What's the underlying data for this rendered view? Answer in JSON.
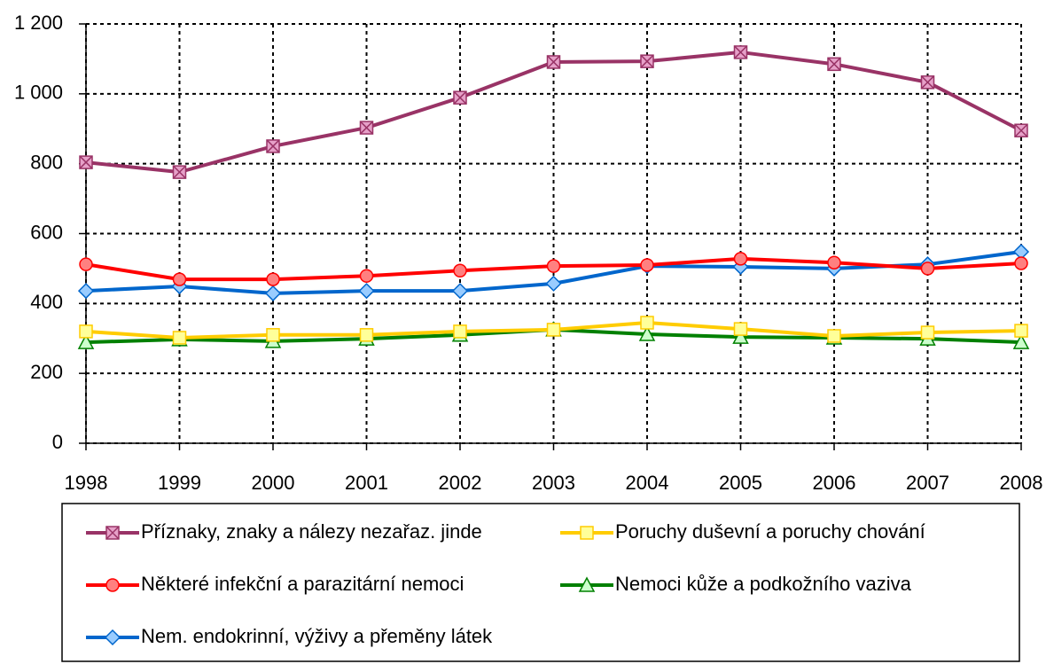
{
  "chart_data": {
    "type": "line",
    "x": [
      1998,
      1999,
      2000,
      2001,
      2002,
      2003,
      2004,
      2005,
      2006,
      2007,
      2008
    ],
    "xlim": [
      1998,
      2008
    ],
    "xticks": [
      1998,
      1999,
      2000,
      2001,
      2002,
      2003,
      2004,
      2005,
      2006,
      2007,
      2008
    ],
    "ylim": [
      0,
      1200
    ],
    "yticks": [
      0,
      200,
      400,
      600,
      800,
      {
        "value": 1000,
        "label": "1 000"
      },
      {
        "value": 1200,
        "label": "1 200"
      }
    ],
    "grid": true,
    "series": [
      {
        "name": "Příznaky, znaky a nálezy nezařaz. jinde",
        "color": "#993366",
        "marker": "xsquare",
        "values": [
          804,
          776,
          850,
          903,
          989,
          1091,
          1093,
          1119,
          1085,
          1033,
          895
        ]
      },
      {
        "name": "Poruchy duševní a poruchy chování",
        "color": "#ffcc00",
        "marker": "square",
        "values": [
          320,
          302,
          310,
          310,
          320,
          325,
          345,
          327,
          307,
          317,
          322
        ]
      },
      {
        "name": "Některé infekční a parazitární nemoci",
        "color": "#ff0000",
        "marker": "circle",
        "values": [
          512,
          469,
          469,
          479,
          494,
          507,
          510,
          528,
          517,
          500,
          515
        ]
      },
      {
        "name": "Nemoci kůže a podkožního vaziva",
        "color": "#008000",
        "marker": "triangle",
        "values": [
          289,
          297,
          292,
          299,
          310,
          325,
          312,
          304,
          302,
          299,
          289
        ]
      },
      {
        "name": "Nem. endokrinní, výživy a přeměny látek",
        "color": "#0066cc",
        "marker": "diamond",
        "values": [
          436,
          449,
          429,
          436,
          436,
          457,
          507,
          505,
          500,
          512,
          548
        ]
      }
    ]
  }
}
